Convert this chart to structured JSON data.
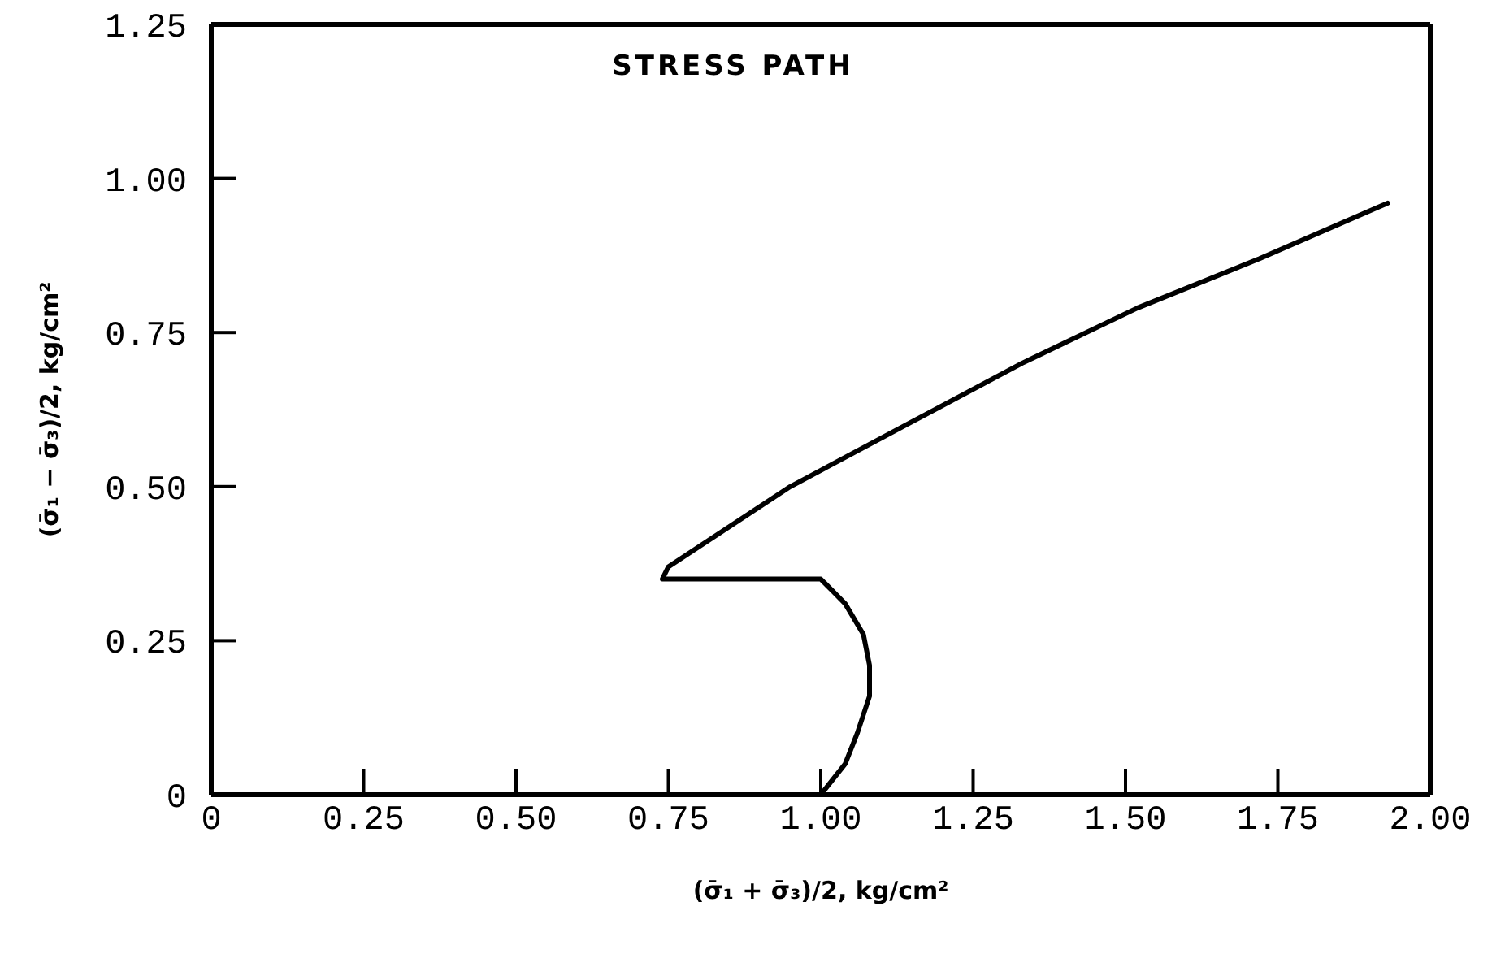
{
  "chart_data": {
    "type": "line",
    "title": "STRESS PATH",
    "xlabel": "(σ̄₁ + σ̄₃)/2, kg/cm²",
    "ylabel": "(σ̄₁ − σ̄₃)/2, kg/cm²",
    "x": [
      1.0,
      1.04,
      1.06,
      1.08,
      1.08,
      1.07,
      1.04,
      1.02,
      1.0,
      0.96,
      0.74,
      0.75,
      0.95,
      1.14,
      1.33,
      1.52,
      1.72,
      1.93
    ],
    "values": [
      0,
      0.05,
      0.1,
      0.16,
      0.21,
      0.26,
      0.31,
      0.33,
      0.35,
      0.35,
      0.35,
      0.37,
      0.5,
      0.6,
      0.7,
      0.79,
      0.87,
      0.96
    ],
    "color": "#000000",
    "xlim": [
      0,
      2
    ],
    "ylim": [
      0,
      1.25
    ],
    "xticks": [
      0,
      0.25,
      {
        "value": 0.5,
        "label": "0.50"
      },
      0.75,
      {
        "value": 1,
        "label": "1.00"
      },
      1.25,
      {
        "value": 1.5,
        "label": "1.50"
      },
      1.75,
      {
        "value": 2,
        "label": "2.00"
      }
    ],
    "yticks": [
      0,
      0.25,
      {
        "value": 0.5,
        "label": "0.50"
      },
      0.75,
      {
        "value": 1,
        "label": "1.00"
      },
      1.25
    ]
  }
}
